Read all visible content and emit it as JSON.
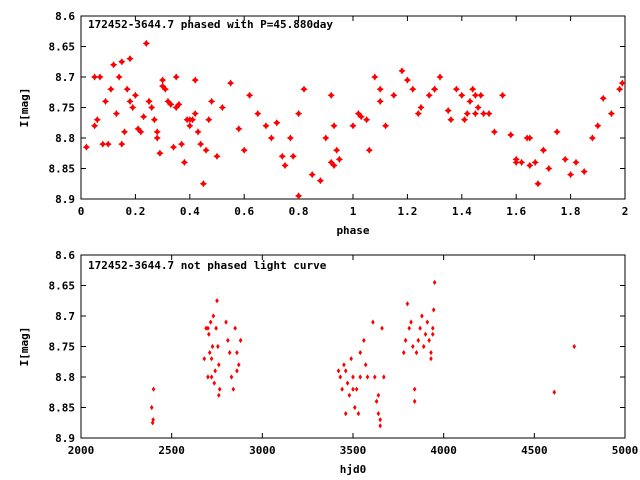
{
  "chart_data": [
    {
      "type": "scatter",
      "title": "172452-3644.7 phased with P=45.880day",
      "xlabel": "phase",
      "ylabel": "I[mag]",
      "xlim": [
        0,
        2
      ],
      "ylim": [
        8.9,
        8.6
      ],
      "y_inverted": true,
      "grid": false,
      "marker": "star",
      "color": "#ff0000",
      "xticks": [
        "0",
        "0.2",
        "0.4",
        "0.6",
        "0.8",
        "1",
        "1.2",
        "1.4",
        "1.6",
        "1.8",
        "2"
      ],
      "yticks": [
        "8.6",
        "8.65",
        "8.7",
        "8.75",
        "8.8",
        "8.85",
        "8.9"
      ],
      "series": [
        {
          "x": [
            0.02,
            0.05,
            0.06,
            0.07,
            0.08,
            0.09,
            0.1,
            0.11,
            0.12,
            0.13,
            0.14,
            0.15,
            0.16,
            0.17,
            0.18,
            0.19,
            0.2,
            0.21,
            0.22,
            0.23,
            0.24,
            0.25,
            0.26,
            0.27,
            0.28,
            0.29,
            0.3,
            0.31,
            0.32,
            0.33,
            0.34,
            0.35,
            0.36,
            0.37,
            0.38,
            0.39,
            0.4,
            0.41,
            0.42,
            0.43,
            0.44,
            0.45,
            0.46,
            0.47,
            0.48,
            0.5,
            0.52,
            0.55,
            0.58,
            0.6,
            0.62,
            0.65,
            0.68,
            0.7,
            0.72,
            0.74,
            0.75,
            0.77,
            0.78,
            0.8,
            0.82,
            0.85,
            0.88,
            0.9,
            0.92,
            0.93,
            0.94,
            0.95,
            1.0,
            1.02,
            1.03,
            1.05,
            1.06,
            1.08,
            1.1,
            1.12,
            1.15,
            1.18,
            1.2,
            1.22,
            1.24,
            1.25,
            1.28,
            1.3,
            1.32,
            1.35,
            1.36,
            1.38,
            1.4,
            1.41,
            1.42,
            1.43,
            1.44,
            1.45,
            1.46,
            1.47,
            1.48,
            1.5,
            1.52,
            1.55,
            1.58,
            1.6,
            1.62,
            1.64,
            1.65,
            1.67,
            1.68,
            1.7,
            1.72,
            1.75,
            1.78,
            1.8,
            1.82,
            1.85,
            1.88,
            1.9,
            1.92,
            1.95,
            1.98,
            1.99,
            0.15,
            0.25,
            0.35,
            0.42,
            0.18,
            0.28,
            0.05,
            0.3,
            0.4,
            1.1,
            1.3,
            1.45,
            0.92,
            0.93,
            0.8,
            1.65,
            1.7,
            1.6
          ],
          "y": [
            8.815,
            8.78,
            8.77,
            8.7,
            8.81,
            8.74,
            8.81,
            8.72,
            8.68,
            8.76,
            8.7,
            8.675,
            8.79,
            8.72,
            8.74,
            8.75,
            8.73,
            8.785,
            8.79,
            8.765,
            8.645,
            8.74,
            8.75,
            8.77,
            8.8,
            8.825,
            8.705,
            8.72,
            8.74,
            8.745,
            8.815,
            8.75,
            8.745,
            8.81,
            8.84,
            8.77,
            8.78,
            8.77,
            8.76,
            8.79,
            8.81,
            8.875,
            8.82,
            8.77,
            8.74,
            8.83,
            8.75,
            8.71,
            8.785,
            8.82,
            8.73,
            8.76,
            8.78,
            8.8,
            8.775,
            8.83,
            8.845,
            8.8,
            8.83,
            8.895,
            8.72,
            8.86,
            8.87,
            8.8,
            8.84,
            8.78,
            8.82,
            8.835,
            8.78,
            8.76,
            8.765,
            8.77,
            8.82,
            8.7,
            8.74,
            8.78,
            8.73,
            8.69,
            8.705,
            8.72,
            8.76,
            8.75,
            8.73,
            8.72,
            8.7,
            8.755,
            8.77,
            8.72,
            8.73,
            8.77,
            8.76,
            8.74,
            8.72,
            8.73,
            8.75,
            8.73,
            8.76,
            8.76,
            8.79,
            8.73,
            8.795,
            8.835,
            8.84,
            8.8,
            8.8,
            8.84,
            8.875,
            8.82,
            8.85,
            8.79,
            8.835,
            8.86,
            8.84,
            8.855,
            8.8,
            8.78,
            8.735,
            8.76,
            8.72,
            8.71,
            8.81,
            8.74,
            8.7,
            8.705,
            8.67,
            8.79,
            8.7,
            8.715,
            8.77,
            8.72,
            8.72,
            8.76,
            8.73,
            8.845,
            8.76,
            8.845,
            8.82,
            8.84
          ]
        }
      ]
    },
    {
      "type": "scatter",
      "title": "172452-3644.7 not phased light curve",
      "xlabel": "hjd0",
      "ylabel": "I[mag]",
      "xlim": [
        2000,
        5000
      ],
      "ylim": [
        8.9,
        8.6
      ],
      "y_inverted": true,
      "grid": false,
      "marker": "diamond",
      "color": "#ff0000",
      "xticks": [
        "2000",
        "2500",
        "3000",
        "3500",
        "4000",
        "4500",
        "5000"
      ],
      "yticks": [
        "8.6",
        "8.65",
        "8.7",
        "8.75",
        "8.8",
        "8.85",
        "8.9"
      ],
      "series": [
        {
          "x": [
            2390,
            2395,
            2398,
            2400,
            2680,
            2690,
            2700,
            2705,
            2710,
            2715,
            2720,
            2725,
            2730,
            2735,
            2740,
            2745,
            2750,
            2755,
            2760,
            2765,
            2800,
            2810,
            2820,
            2830,
            2840,
            2850,
            2860,
            2870,
            2880,
            3420,
            3430,
            3440,
            3450,
            3460,
            3470,
            3480,
            3490,
            3500,
            3510,
            3520,
            3530,
            3540,
            3560,
            3570,
            3580,
            3610,
            3620,
            3630,
            3640,
            3650,
            3660,
            3670,
            3780,
            3790,
            3800,
            3810,
            3820,
            3830,
            3840,
            3850,
            3860,
            3870,
            3880,
            3890,
            3900,
            3910,
            3920,
            3930,
            3940,
            3950,
            4610,
            4720,
            2700,
            2760,
            2720,
            2860,
            3460,
            3500,
            3540,
            3640,
            3650,
            3840,
            3930,
            3940,
            3945
          ],
          "y": [
            8.85,
            8.875,
            8.87,
            8.82,
            8.77,
            8.72,
            8.8,
            8.73,
            8.76,
            8.71,
            8.8,
            8.75,
            8.7,
            8.81,
            8.79,
            8.72,
            8.675,
            8.75,
            8.78,
            8.82,
            8.71,
            8.74,
            8.76,
            8.8,
            8.82,
            8.72,
            8.76,
            8.78,
            8.74,
            8.79,
            8.8,
            8.82,
            8.78,
            8.79,
            8.81,
            8.83,
            8.77,
            8.8,
            8.85,
            8.82,
            8.86,
            8.8,
            8.74,
            8.78,
            8.8,
            8.71,
            8.8,
            8.84,
            8.86,
            8.88,
            8.72,
            8.8,
            8.76,
            8.74,
            8.68,
            8.72,
            8.71,
            8.75,
            8.84,
            8.76,
            8.74,
            8.72,
            8.7,
            8.75,
            8.73,
            8.71,
            8.74,
            8.76,
            8.72,
            8.645,
            8.825,
            8.75,
            8.72,
            8.83,
            8.77,
            8.79,
            8.86,
            8.82,
            8.76,
            8.83,
            8.87,
            8.82,
            8.77,
            8.73,
            8.69
          ]
        }
      ]
    }
  ]
}
